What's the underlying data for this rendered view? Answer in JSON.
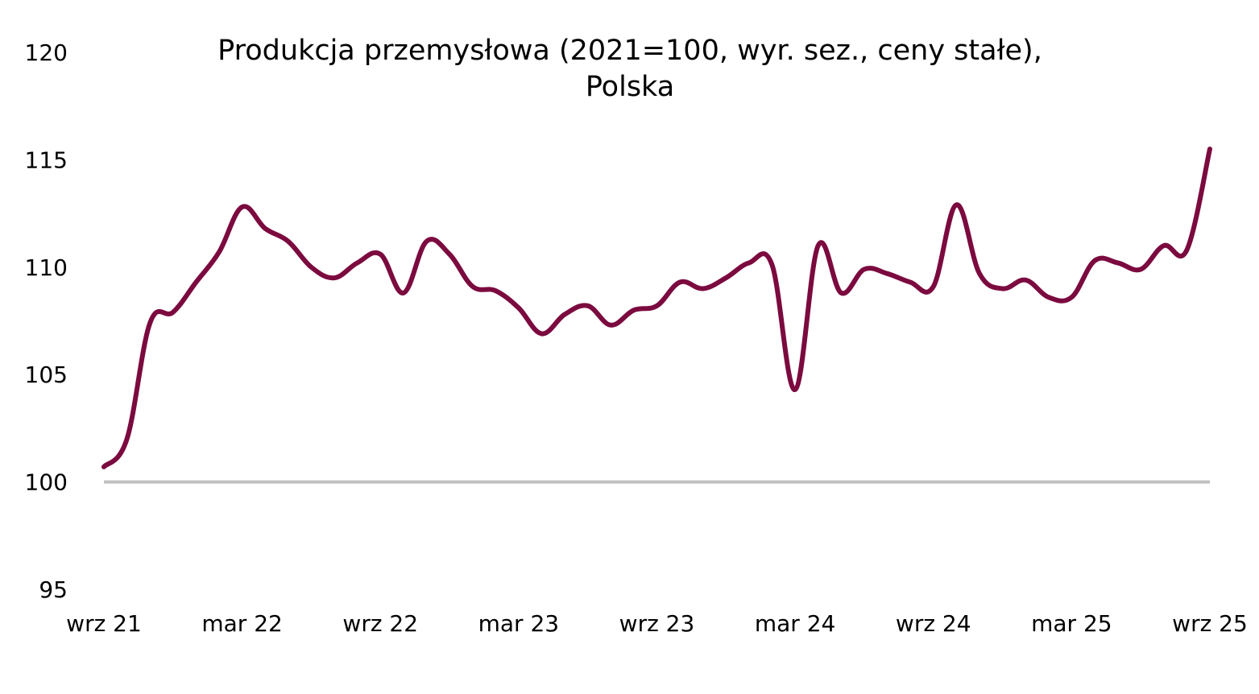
{
  "chart_data": {
    "type": "line",
    "title_lines": [
      "Produkcja przemysłowa (2021=100, wyr. sez., ceny stałe),",
      "Polska"
    ],
    "xlabel": "",
    "ylabel": "",
    "x_tick_labels": [
      "wrz 21",
      "mar 22",
      "wrz 22",
      "mar 23",
      "wrz 23",
      "mar 24",
      "wrz 24",
      "mar 25",
      "wrz 25"
    ],
    "y_tick_labels": [
      "95",
      "100",
      "105",
      "110",
      "115",
      "120"
    ],
    "ylim": [
      95,
      120
    ],
    "grid": false,
    "baseline": {
      "value": 100,
      "color": "#c0c0c0"
    },
    "x": [
      "2021-09",
      "2021-10",
      "2021-11",
      "2021-12",
      "2022-01",
      "2022-02",
      "2022-03",
      "2022-04",
      "2022-05",
      "2022-06",
      "2022-07",
      "2022-08",
      "2022-09",
      "2022-10",
      "2022-11",
      "2022-12",
      "2023-01",
      "2023-02",
      "2023-03",
      "2023-04",
      "2023-05",
      "2023-06",
      "2023-07",
      "2023-08",
      "2023-09",
      "2023-10",
      "2023-11",
      "2023-12",
      "2024-01",
      "2024-02",
      "2024-03",
      "2024-04",
      "2024-05",
      "2024-06",
      "2024-07",
      "2024-08",
      "2024-09",
      "2024-10",
      "2024-11",
      "2024-12",
      "2025-01",
      "2025-02",
      "2025-03",
      "2025-04",
      "2025-05",
      "2025-06",
      "2025-07",
      "2025-08",
      "2025-09"
    ],
    "series": [
      {
        "color": "#7b0a3f",
        "values": [
          100.7,
          102.0,
          107.4,
          107.9,
          109.3,
          110.7,
          112.8,
          111.8,
          111.2,
          110.0,
          109.5,
          110.2,
          110.6,
          108.8,
          111.2,
          110.6,
          109.1,
          108.9,
          108.1,
          106.9,
          107.8,
          108.2,
          107.3,
          108.0,
          108.2,
          109.3,
          109.0,
          109.5,
          110.2,
          110.1,
          104.3,
          111.0,
          108.8,
          109.9,
          109.7,
          109.3,
          109.1,
          112.9,
          109.7,
          109.0,
          109.4,
          108.6,
          108.6,
          110.3,
          110.2,
          109.9,
          111.0,
          110.8,
          115.5
        ]
      }
    ]
  }
}
